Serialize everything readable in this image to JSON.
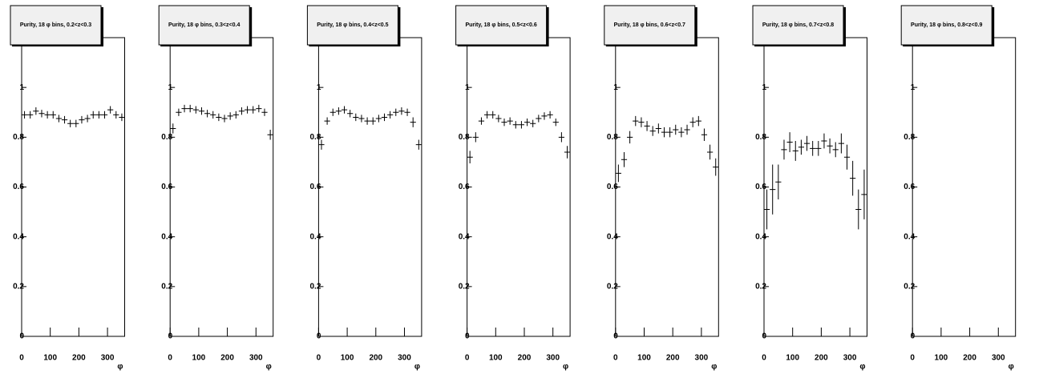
{
  "chart_data": [
    {
      "type": "errorbar",
      "title": "Purity, 18 φ bins, 0.2<z<0.3",
      "x_label": "φ",
      "x": [
        10,
        30,
        50,
        70,
        90,
        110,
        130,
        150,
        170,
        190,
        210,
        230,
        250,
        270,
        290,
        310,
        330,
        350
      ],
      "values": [
        0.89,
        0.89,
        0.905,
        0.895,
        0.89,
        0.89,
        0.875,
        0.87,
        0.855,
        0.855,
        0.87,
        0.875,
        0.89,
        0.89,
        0.89,
        0.91,
        0.89,
        0.88
      ],
      "errors": [
        0.015,
        0.015,
        0.015,
        0.015,
        0.015,
        0.015,
        0.015,
        0.015,
        0.015,
        0.015,
        0.015,
        0.015,
        0.015,
        0.015,
        0.015,
        0.015,
        0.015,
        0.015
      ],
      "xlim": [
        0,
        360
      ],
      "ylim": [
        0,
        1.2
      ],
      "xticks": [
        0,
        100,
        200,
        300
      ],
      "yticks": [
        0,
        0.2,
        0.4,
        0.6,
        0.8,
        1
      ]
    },
    {
      "type": "errorbar",
      "title": "Purity, 18 φ bins, 0.3<z<0.4",
      "x_label": "φ",
      "x": [
        10,
        30,
        50,
        70,
        90,
        110,
        130,
        150,
        170,
        190,
        210,
        230,
        250,
        270,
        290,
        310,
        330,
        350
      ],
      "values": [
        0.835,
        0.9,
        0.915,
        0.915,
        0.91,
        0.905,
        0.895,
        0.89,
        0.88,
        0.875,
        0.885,
        0.89,
        0.905,
        0.91,
        0.91,
        0.915,
        0.9,
        0.81
      ],
      "errors": [
        0.02,
        0.015,
        0.015,
        0.015,
        0.015,
        0.015,
        0.015,
        0.015,
        0.015,
        0.015,
        0.015,
        0.015,
        0.015,
        0.015,
        0.015,
        0.015,
        0.015,
        0.02
      ],
      "xlim": [
        0,
        360
      ],
      "ylim": [
        0,
        1.2
      ],
      "xticks": [
        0,
        100,
        200,
        300
      ],
      "yticks": [
        0,
        0.2,
        0.4,
        0.6,
        0.8,
        1
      ]
    },
    {
      "type": "errorbar",
      "title": "Purity, 18 φ bins, 0.4<z<0.5",
      "x_label": "φ",
      "x": [
        10,
        30,
        50,
        70,
        90,
        110,
        130,
        150,
        170,
        190,
        210,
        230,
        250,
        270,
        290,
        310,
        330,
        350
      ],
      "values": [
        0.77,
        0.865,
        0.9,
        0.905,
        0.91,
        0.895,
        0.88,
        0.875,
        0.865,
        0.865,
        0.875,
        0.88,
        0.89,
        0.9,
        0.905,
        0.9,
        0.86,
        0.77
      ],
      "errors": [
        0.02,
        0.015,
        0.015,
        0.015,
        0.015,
        0.015,
        0.015,
        0.015,
        0.015,
        0.015,
        0.015,
        0.015,
        0.015,
        0.015,
        0.015,
        0.015,
        0.02,
        0.02
      ],
      "xlim": [
        0,
        360
      ],
      "ylim": [
        0,
        1.2
      ],
      "xticks": [
        0,
        100,
        200,
        300
      ],
      "yticks": [
        0,
        0.2,
        0.4,
        0.6,
        0.8,
        1
      ]
    },
    {
      "type": "errorbar",
      "title": "Purity, 18 φ bins, 0.5<z<0.6",
      "x_label": "φ",
      "x": [
        10,
        30,
        50,
        70,
        90,
        110,
        130,
        150,
        170,
        190,
        210,
        230,
        250,
        270,
        290,
        310,
        330,
        350
      ],
      "values": [
        0.72,
        0.8,
        0.865,
        0.89,
        0.89,
        0.875,
        0.86,
        0.865,
        0.85,
        0.85,
        0.86,
        0.855,
        0.875,
        0.885,
        0.89,
        0.86,
        0.8,
        0.74
      ],
      "errors": [
        0.025,
        0.02,
        0.015,
        0.015,
        0.015,
        0.015,
        0.015,
        0.015,
        0.015,
        0.015,
        0.015,
        0.015,
        0.015,
        0.015,
        0.015,
        0.015,
        0.02,
        0.025
      ],
      "xlim": [
        0,
        360
      ],
      "ylim": [
        0,
        1.2
      ],
      "xticks": [
        0,
        100,
        200,
        300
      ],
      "yticks": [
        0,
        0.2,
        0.4,
        0.6,
        0.8,
        1
      ]
    },
    {
      "type": "errorbar",
      "title": "Purity, 18 φ bins, 0.6<z<0.7",
      "x_label": "φ",
      "x": [
        10,
        30,
        50,
        70,
        90,
        110,
        130,
        150,
        170,
        190,
        210,
        230,
        250,
        270,
        290,
        310,
        330,
        350
      ],
      "values": [
        0.655,
        0.71,
        0.8,
        0.865,
        0.86,
        0.845,
        0.825,
        0.835,
        0.82,
        0.82,
        0.83,
        0.82,
        0.83,
        0.86,
        0.865,
        0.81,
        0.74,
        0.68
      ],
      "errors": [
        0.035,
        0.03,
        0.025,
        0.02,
        0.02,
        0.02,
        0.02,
        0.02,
        0.02,
        0.02,
        0.02,
        0.02,
        0.02,
        0.02,
        0.02,
        0.025,
        0.03,
        0.035
      ],
      "xlim": [
        0,
        360
      ],
      "ylim": [
        0,
        1.2
      ],
      "xticks": [
        0,
        100,
        200,
        300
      ],
      "yticks": [
        0,
        0.2,
        0.4,
        0.6,
        0.8,
        1
      ]
    },
    {
      "type": "errorbar",
      "title": "Purity, 18 φ bins, 0.7<z<0.8",
      "x_label": "φ",
      "x": [
        10,
        30,
        50,
        70,
        90,
        110,
        130,
        150,
        170,
        190,
        210,
        230,
        250,
        270,
        290,
        310,
        330,
        350
      ],
      "values": [
        0.51,
        0.59,
        0.62,
        0.75,
        0.78,
        0.745,
        0.76,
        0.775,
        0.755,
        0.755,
        0.785,
        0.765,
        0.75,
        0.775,
        0.72,
        0.635,
        0.51,
        0.57
      ],
      "errors": [
        0.08,
        0.1,
        0.07,
        0.04,
        0.04,
        0.04,
        0.03,
        0.03,
        0.03,
        0.03,
        0.03,
        0.03,
        0.03,
        0.04,
        0.05,
        0.07,
        0.08,
        0.1
      ],
      "xlim": [
        0,
        360
      ],
      "ylim": [
        0,
        1.2
      ],
      "xticks": [
        0,
        100,
        200,
        300
      ],
      "yticks": [
        0,
        0.2,
        0.4,
        0.6,
        0.8,
        1
      ]
    },
    {
      "type": "errorbar",
      "title": "Purity, 18 φ bins, 0.8<z<0.9",
      "x_label": "φ",
      "x": [],
      "values": [],
      "errors": [],
      "xlim": [
        0,
        360
      ],
      "ylim": [
        0,
        1.2
      ],
      "xticks": [
        0,
        100,
        200,
        300
      ],
      "yticks": [
        0,
        0.2,
        0.4,
        0.6,
        0.8,
        1
      ]
    }
  ]
}
